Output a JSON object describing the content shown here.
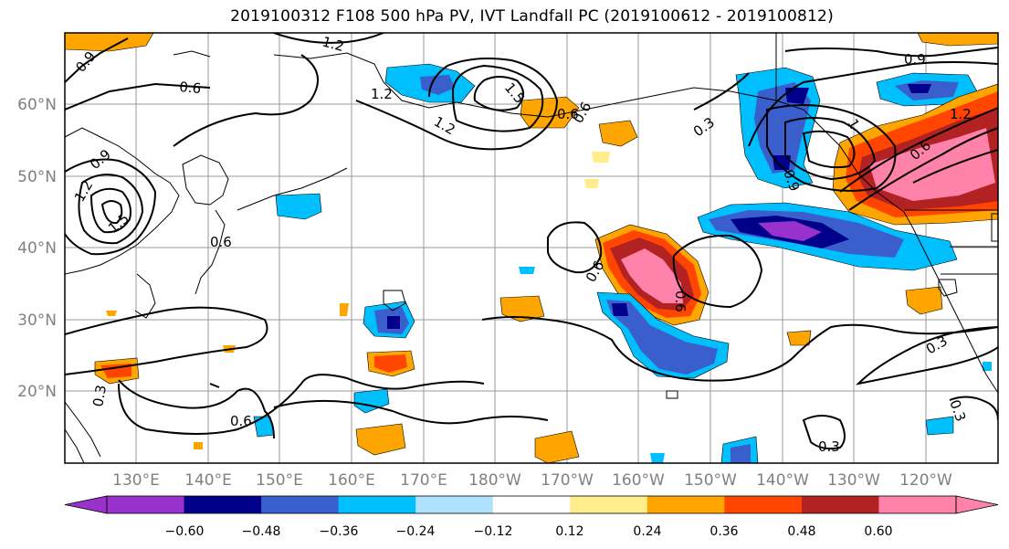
{
  "title": "2019100312 F108 500 hPa PV, IVT Landfall PC (2019100612 - 2019100812)",
  "map": {
    "lat_labels": [
      "60°N",
      "50°N",
      "40°N",
      "30°N",
      "20°N"
    ],
    "lon_labels": [
      "130°E",
      "140°E",
      "150°E",
      "160°E",
      "170°E",
      "180°W",
      "170°W",
      "160°W",
      "150°W",
      "140°W",
      "130°W",
      "120°W"
    ],
    "contour_labels": [
      "0.9",
      "0.6",
      "1.2",
      "1.2",
      "1.5",
      "1.2",
      "0.6",
      "0.3",
      "0.9",
      "0.9",
      "1.2",
      "1.5",
      "0.6",
      "0.6",
      "0.6",
      "0.3",
      "0.6",
      "0.3",
      "0.3",
      "0.3",
      "0.9",
      "1",
      "1.2",
      "0.6",
      "0.6"
    ]
  },
  "colorbar": {
    "colors": [
      "#9932cc",
      "#00008b",
      "#3a5fcd",
      "#00bfff",
      "#b0e2ff",
      "#ffffff",
      "#ffec8b",
      "#ffa500",
      "#ff4500",
      "#b22222",
      "#ff82ab"
    ],
    "tick_labels": [
      "−0.60",
      "−0.48",
      "−0.36",
      "−0.24",
      "−0.12",
      "0.12",
      "0.24",
      "0.36",
      "0.48",
      "0.60"
    ]
  }
}
